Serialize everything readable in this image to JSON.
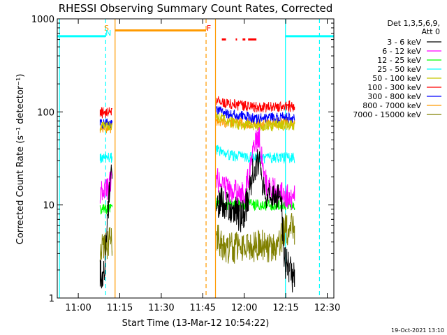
{
  "chart_data": {
    "type": "line",
    "title": "RHESSI Observing Summary Count Rates, Corrected",
    "xlabel": "Start Time (13-Mar-12 10:54:22)",
    "ylabel": "Corrected Count Rate (s⁻¹ detector⁻¹)",
    "yscale": "log",
    "ylim": [
      1,
      1000
    ],
    "xlim_minutes_from_start": [
      -2,
      98
    ],
    "x_ticks": [
      {
        "label": "11:00",
        "min": 5.6
      },
      {
        "label": "11:15",
        "min": 20.6
      },
      {
        "label": "11:30",
        "min": 35.6
      },
      {
        "label": "11:45",
        "min": 50.6
      },
      {
        "label": "12:00",
        "min": 65.6
      },
      {
        "label": "12:15",
        "min": 80.6
      },
      {
        "label": "12:30",
        "min": 95.6
      }
    ],
    "y_ticks": [
      {
        "label": "1",
        "value": 1
      },
      {
        "label": "10",
        "value": 10
      },
      {
        "label": "100",
        "value": 100
      },
      {
        "label": "1000",
        "value": 1000
      }
    ],
    "legend_header": [
      "Det 1,3,5,6,9,",
      "Att 0"
    ],
    "legend_position": "right",
    "series": [
      {
        "name": "3 - 6 keV",
        "color": "#000000",
        "segments": [
          {
            "x": [
              13.5,
              15,
              16.5,
              17,
              18
            ],
            "y": [
              1.8,
              1.8,
              10,
              20,
              25
            ]
          },
          {
            "x": [
              55.5,
              60,
              62,
              64,
              66,
              67.5,
              69,
              71,
              73,
              76,
              79,
              80,
              82,
              84
            ],
            "y": [
              11,
              10,
              8.5,
              7.5,
              8.5,
              14,
              25,
              32,
              12,
              11.5,
              11.5,
              2.5,
              2.0,
              1.5
            ]
          }
        ]
      },
      {
        "name": "6 - 12 keV",
        "color": "#ff00ff",
        "segments": [
          {
            "x": [
              13.5,
              15,
              16.5,
              18
            ],
            "y": [
              13,
              14,
              16,
              22
            ]
          },
          {
            "x": [
              55.5,
              58,
              62,
              64,
              66,
              67.5,
              69,
              71,
              73,
              76,
              79,
              82,
              84
            ],
            "y": [
              20,
              15,
              14,
              12,
              14,
              22,
              40,
              55,
              18,
              15,
              13,
              12,
              12
            ]
          }
        ]
      },
      {
        "name": "12 - 25 keV",
        "color": "#00ff00",
        "segments": [
          {
            "x": [
              13.5,
              18
            ],
            "y": [
              9,
              9
            ]
          },
          {
            "x": [
              55.5,
              62,
              70,
              84
            ],
            "y": [
              10.5,
              10,
              10,
              10
            ]
          }
        ]
      },
      {
        "name": "25 - 50 keV",
        "color": "#00ffff",
        "segments": [
          {
            "x": [
              -2,
              15.5
            ],
            "y": [
              650,
              650
            ]
          },
          {
            "x": [
              13.5,
              18
            ],
            "y": [
              32,
              32
            ]
          },
          {
            "x": [
              55.5,
              60,
              70,
              84
            ],
            "y": [
              40,
              34,
              32,
              32
            ]
          },
          {
            "x": [
              80.5,
              98
            ],
            "y": [
              650,
              650
            ]
          }
        ]
      },
      {
        "name": "50 - 100 keV",
        "color": "#c8c800",
        "segments": [
          {
            "x": [
              13.5,
              18
            ],
            "y": [
              70,
              70
            ]
          },
          {
            "x": [
              55.5,
              62,
              70,
              84
            ],
            "y": [
              90,
              75,
              70,
              72
            ]
          }
        ]
      },
      {
        "name": "100 - 300 keV",
        "color": "#ff0000",
        "segments": [
          {
            "x": [
              13.5,
              18
            ],
            "y": [
              97,
              102
            ]
          },
          {
            "x": [
              55.5,
              62,
              70,
              84
            ],
            "y": [
              135,
              120,
              112,
              115
            ]
          }
        ]
      },
      {
        "name": "300 - 800 keV",
        "color": "#0000ff",
        "segments": [
          {
            "x": [
              13.5,
              18
            ],
            "y": [
              75,
              77
            ]
          },
          {
            "x": [
              55.5,
              62,
              70,
              84
            ],
            "y": [
              105,
              92,
              85,
              87
            ]
          }
        ]
      },
      {
        "name": "800 - 7000 keV",
        "color": "#ff9a00",
        "segments": [
          {
            "x": [
              13.5,
              18
            ],
            "y": [
              66,
              68
            ]
          },
          {
            "x": [
              55.5,
              62,
              70,
              84
            ],
            "y": [
              78,
              76,
              75,
              76
            ]
          }
        ]
      },
      {
        "name": "7000 - 15000 keV",
        "color": "#808000",
        "segments": [
          {
            "x": [
              13.5,
              15,
              18
            ],
            "y": [
              3.2,
              3.5,
              4.2
            ]
          },
          {
            "x": [
              55.5,
              58,
              61,
              70,
              78,
              80,
              82,
              84
            ],
            "y": [
              4.5,
              3.5,
              3.5,
              3.6,
              3.6,
              5.5,
              5.5,
              5.5
            ]
          }
        ]
      }
    ],
    "annotations": [
      {
        "text": "S",
        "color": "#ff9a00",
        "x_min": 15.8
      },
      {
        "text": "N",
        "color": "#00ffff",
        "x_min": 16.5
      },
      {
        "text": "F",
        "color": "#ff0000",
        "x_min": 52.8
      }
    ],
    "vertical_lines": [
      {
        "x_min": -1.2,
        "color": "#00ffff",
        "style": "solid"
      },
      {
        "x_min": 15.5,
        "color": "#00ffff",
        "style": "dashed"
      },
      {
        "x_min": 18.9,
        "color": "#ff9a00",
        "style": "solid"
      },
      {
        "x_min": 51.8,
        "color": "#ff9a00",
        "style": "dashed"
      },
      {
        "x_min": 55.2,
        "color": "#ff9a00",
        "style": "solid"
      },
      {
        "x_min": 80.5,
        "color": "#00ffff",
        "style": "solid"
      },
      {
        "x_min": 92.8,
        "color": "#00ffff",
        "style": "dashed"
      }
    ],
    "bars": [
      {
        "x0": 18.9,
        "x1": 51.8,
        "y": 750,
        "color": "#ff9a00"
      },
      {
        "x0": 57.5,
        "x1": 59,
        "y": 600,
        "color": "#ff0000"
      },
      {
        "x0": 62.5,
        "x1": 63,
        "y": 600,
        "color": "#ff0000"
      },
      {
        "x0": 65,
        "x1": 66,
        "y": 600,
        "color": "#ff0000"
      },
      {
        "x0": 67,
        "x1": 70,
        "y": 600,
        "color": "#ff0000"
      }
    ],
    "timestamp": "19-Oct-2021 13:10"
  }
}
